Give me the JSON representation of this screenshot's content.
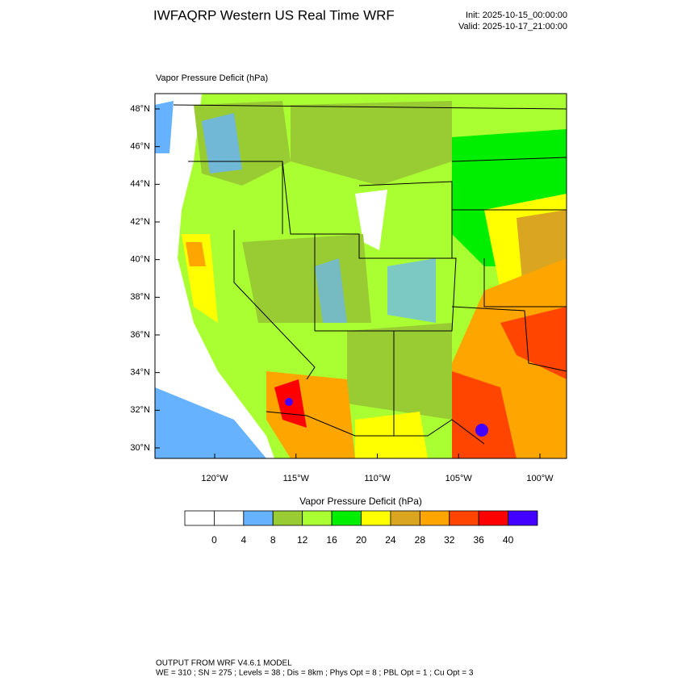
{
  "header": {
    "title": "IWFAQRP Western US Real Time WRF",
    "init": "Init: 2025-10-15_00:00:00",
    "valid": "Valid: 2025-10-17_21:00:00"
  },
  "map": {
    "subtitle": "Vapor Pressure Deficit   (hPa)",
    "lat_ticks": [
      {
        "value": 30,
        "label": "30°N"
      },
      {
        "value": 32,
        "label": "32°N"
      },
      {
        "value": 34,
        "label": "34°N"
      },
      {
        "value": 36,
        "label": "36°N"
      },
      {
        "value": 38,
        "label": "38°N"
      },
      {
        "value": 40,
        "label": "40°N"
      },
      {
        "value": 42,
        "label": "42°N"
      },
      {
        "value": 44,
        "label": "44°N"
      },
      {
        "value": 46,
        "label": "46°N"
      },
      {
        "value": 48,
        "label": "48°N"
      }
    ],
    "lon_ticks": [
      {
        "value": -120,
        "label": "120°W"
      },
      {
        "value": -115,
        "label": "115°W"
      },
      {
        "value": -110,
        "label": "110°W"
      },
      {
        "value": -105,
        "label": "105°W"
      },
      {
        "value": -100,
        "label": "100°W"
      }
    ]
  },
  "colorbar": {
    "title": "Vapor Pressure Deficit  (hPa)",
    "levels": [
      0,
      4,
      8,
      12,
      16,
      20,
      24,
      28,
      32,
      36,
      40
    ],
    "colors": [
      "#ffffff",
      "#ffffff",
      "#66b2ff",
      "#99cc33",
      "#aaff33",
      "#00ee00",
      "#ffff00",
      "#daa520",
      "#ffa500",
      "#ff4500",
      "#ff0000",
      "#4400ff"
    ]
  },
  "footer": {
    "line1": "OUTPUT FROM WRF V4.6.1 MODEL",
    "line2": "WE = 310 ; SN = 275 ; Levels = 38 ; Dis = 8km ; Phys Opt = 8 ; PBL Opt = 1 ; Cu Opt = 3"
  }
}
